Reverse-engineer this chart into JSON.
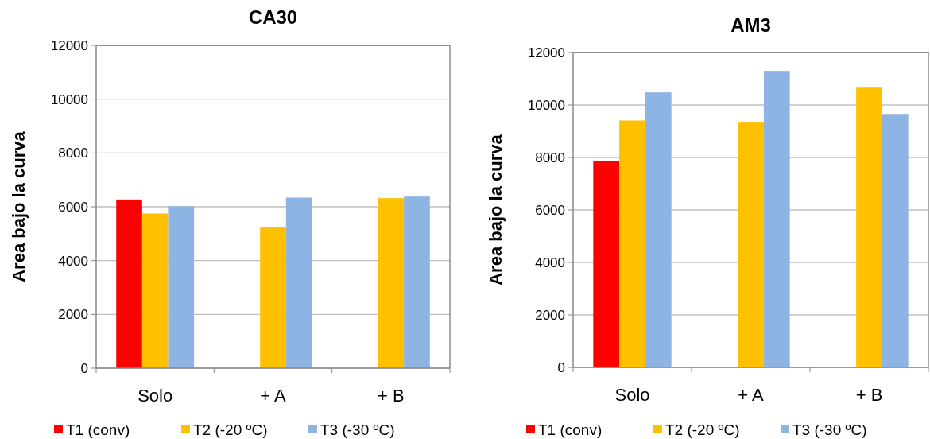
{
  "chart_data": [
    {
      "type": "bar",
      "title": "CA30",
      "ylabel": "Area bajo la curva",
      "categories": [
        "Solo",
        "+ A",
        "+ B"
      ],
      "ylim": [
        0,
        12000
      ],
      "yticks": [
        0,
        2000,
        4000,
        6000,
        8000,
        10000,
        12000
      ],
      "grid": "y",
      "legend": "bottom",
      "series": [
        {
          "name": "T1 (conv)",
          "color": "#ff0000",
          "values": [
            6270,
            null,
            null
          ]
        },
        {
          "name": "T2 (-20 ºC)",
          "color": "#ffc000",
          "values": [
            5750,
            5240,
            6320
          ]
        },
        {
          "name": "T3 (-30 ºC)",
          "color": "#8eb4e3",
          "values": [
            6020,
            6340,
            6380
          ]
        }
      ]
    },
    {
      "type": "bar",
      "title": "AM3",
      "ylabel": "Area bajo la curva",
      "categories": [
        "Solo",
        "+ A",
        "+ B"
      ],
      "ylim": [
        0,
        12000
      ],
      "yticks": [
        0,
        2000,
        4000,
        6000,
        8000,
        10000,
        12000
      ],
      "grid": "y",
      "legend": "bottom",
      "series": [
        {
          "name": "T1 (conv)",
          "color": "#ff0000",
          "values": [
            7880,
            null,
            null
          ]
        },
        {
          "name": "T2 (-20 ºC)",
          "color": "#ffc000",
          "values": [
            9410,
            9330,
            10660
          ]
        },
        {
          "name": "T3 (-30 ºC)",
          "color": "#8eb4e3",
          "values": [
            10480,
            11300,
            9660
          ]
        }
      ]
    }
  ]
}
